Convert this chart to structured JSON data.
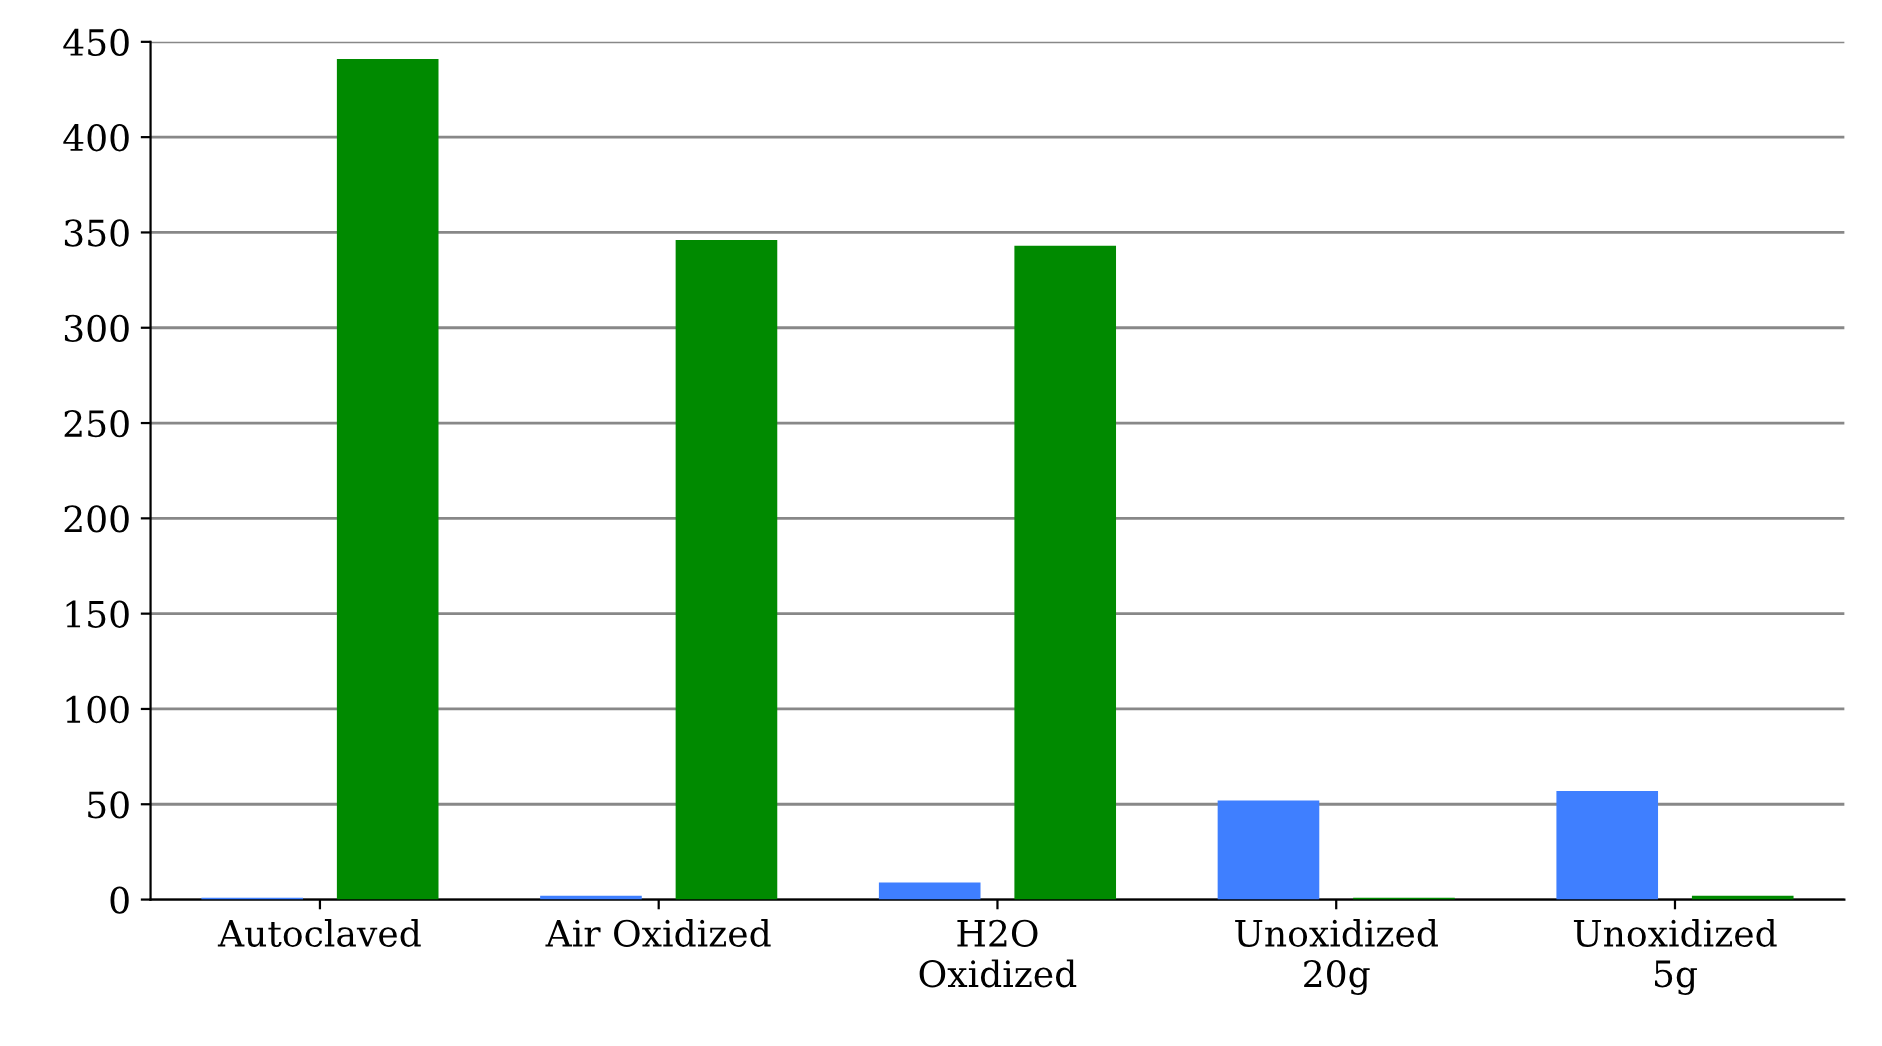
{
  "chart_data": {
    "type": "bar",
    "categories": [
      "Autoclaved",
      "Air Oxidized",
      "H2O\nOxidized",
      "Unoxidized\n20g",
      "Unoxidized\n5g"
    ],
    "series": [
      {
        "color": "#3f7fff",
        "values": [
          1,
          2,
          9,
          52,
          57
        ]
      },
      {
        "color": "#008a00",
        "values": [
          441,
          346,
          343,
          1,
          2
        ]
      }
    ],
    "ylim": [
      0,
      450
    ],
    "yticks": [
      0,
      50,
      100,
      150,
      200,
      250,
      300,
      350,
      400,
      450
    ],
    "grid": "y"
  }
}
